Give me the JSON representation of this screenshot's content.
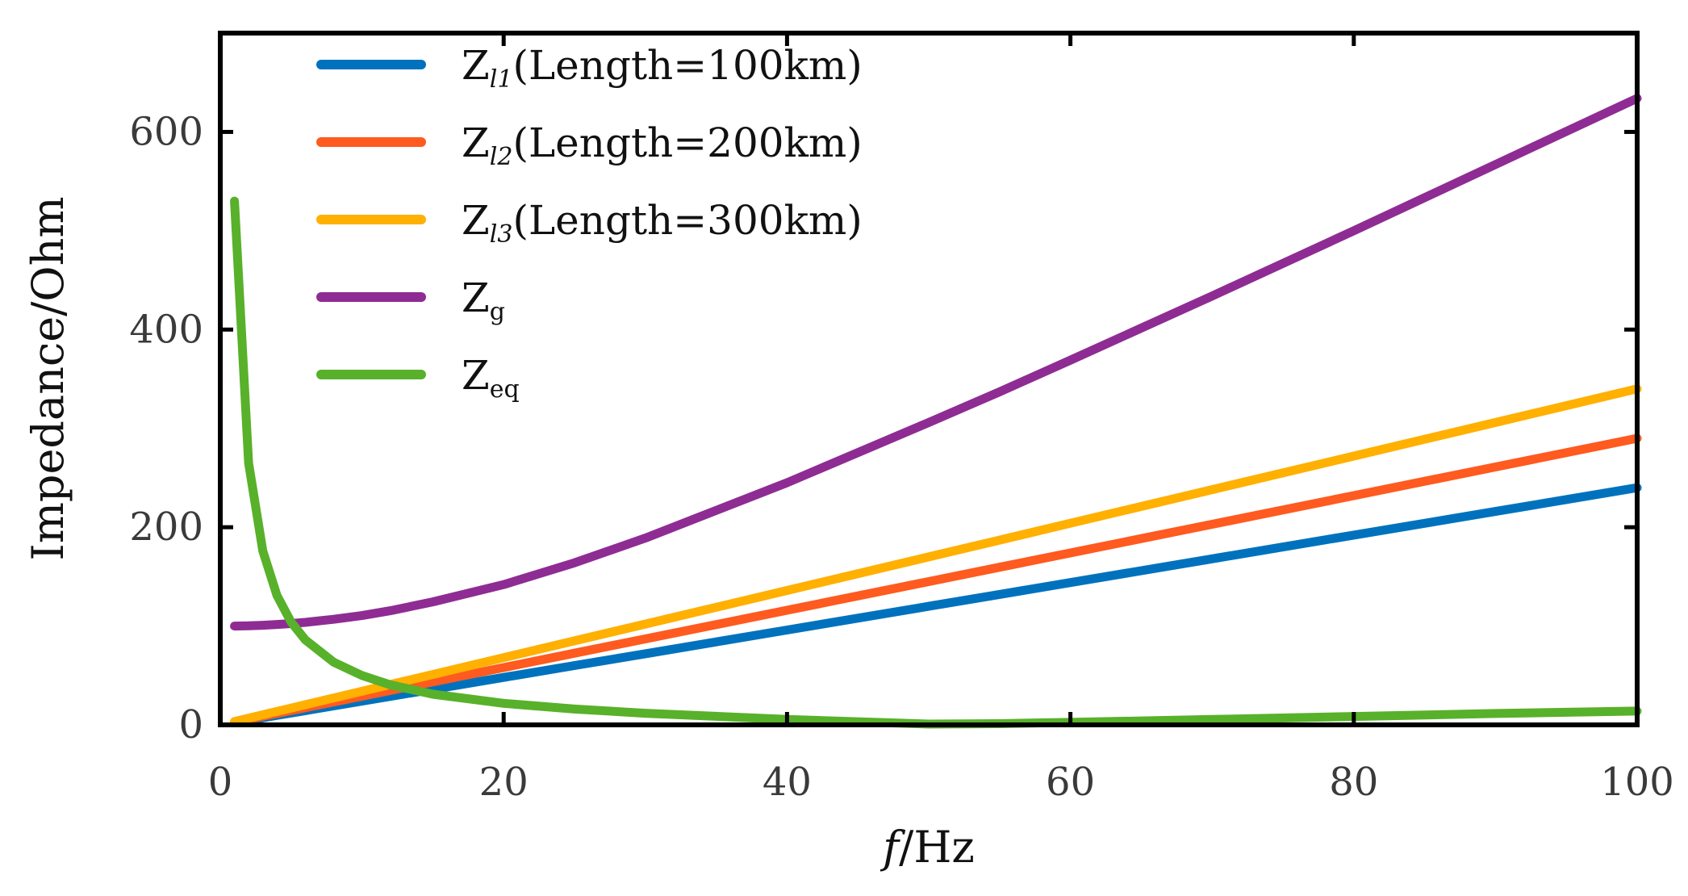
{
  "chart_data": {
    "type": "line",
    "title": "",
    "xlabel": {
      "italic": "f",
      "rest": "/Hz"
    },
    "ylabel": "Impedance/Ohm",
    "xlim": [
      0,
      100
    ],
    "ylim": [
      0,
      700
    ],
    "x_ticks": [
      0,
      20,
      40,
      60,
      80,
      100
    ],
    "x_tick_labels": [
      "0",
      "20",
      "40",
      "60",
      "80",
      "100"
    ],
    "y_ticks": [
      0,
      200,
      400,
      600
    ],
    "y_tick_labels": [
      "0",
      "200",
      "400",
      "600"
    ],
    "grid": false,
    "legend_position": "top-left",
    "x": [
      1,
      2,
      3,
      4,
      5,
      6,
      8,
      10,
      12,
      15,
      20,
      25,
      30,
      40,
      50,
      55,
      60,
      70,
      80,
      90,
      100
    ],
    "series": [
      {
        "name": "Z",
        "sub": "l1",
        "suffix": "(Length=100km)",
        "color": "#0072BD",
        "values": [
          2.4,
          4.8,
          7.2,
          9.6,
          12,
          14.4,
          19.2,
          24,
          28.8,
          36,
          48,
          60,
          72,
          96,
          120,
          132,
          144,
          168,
          192,
          216,
          240
        ]
      },
      {
        "name": "Z",
        "sub": "l2",
        "suffix": "(Length=200km)",
        "color": "#FF5A1F",
        "values": [
          2.9,
          5.8,
          8.7,
          11.6,
          14.5,
          17.4,
          23.2,
          29,
          34.8,
          43.5,
          58,
          72.5,
          87,
          116,
          145,
          159.5,
          174,
          203,
          232,
          261,
          290
        ]
      },
      {
        "name": "Z",
        "sub": "l3",
        "suffix": "(Length=300km)",
        "color": "#FFB000",
        "values": [
          3.4,
          6.8,
          10.2,
          13.6,
          17,
          20.4,
          27.2,
          34,
          40.8,
          51,
          68,
          85,
          102,
          136,
          170,
          187,
          204,
          238,
          272,
          306,
          340
        ]
      },
      {
        "name": "Z",
        "sub": "g",
        "suffix": "",
        "color": "#8E2C94",
        "values": [
          100,
          100.2,
          100.8,
          101.6,
          102.5,
          103.7,
          106.8,
          110.6,
          115.5,
          124.5,
          142,
          164,
          189,
          245,
          306,
          337,
          369,
          434,
          500,
          567,
          634
        ]
      },
      {
        "name": "Z",
        "sub": "eq",
        "suffix": "",
        "color": "#58B12A",
        "values": [
          530,
          265,
          176,
          131,
          104,
          86,
          63.5,
          50,
          40.5,
          31,
          21.8,
          16,
          11.8,
          5.5,
          0.8,
          1.2,
          2.5,
          5.5,
          8.5,
          11.5,
          14
        ]
      }
    ]
  }
}
